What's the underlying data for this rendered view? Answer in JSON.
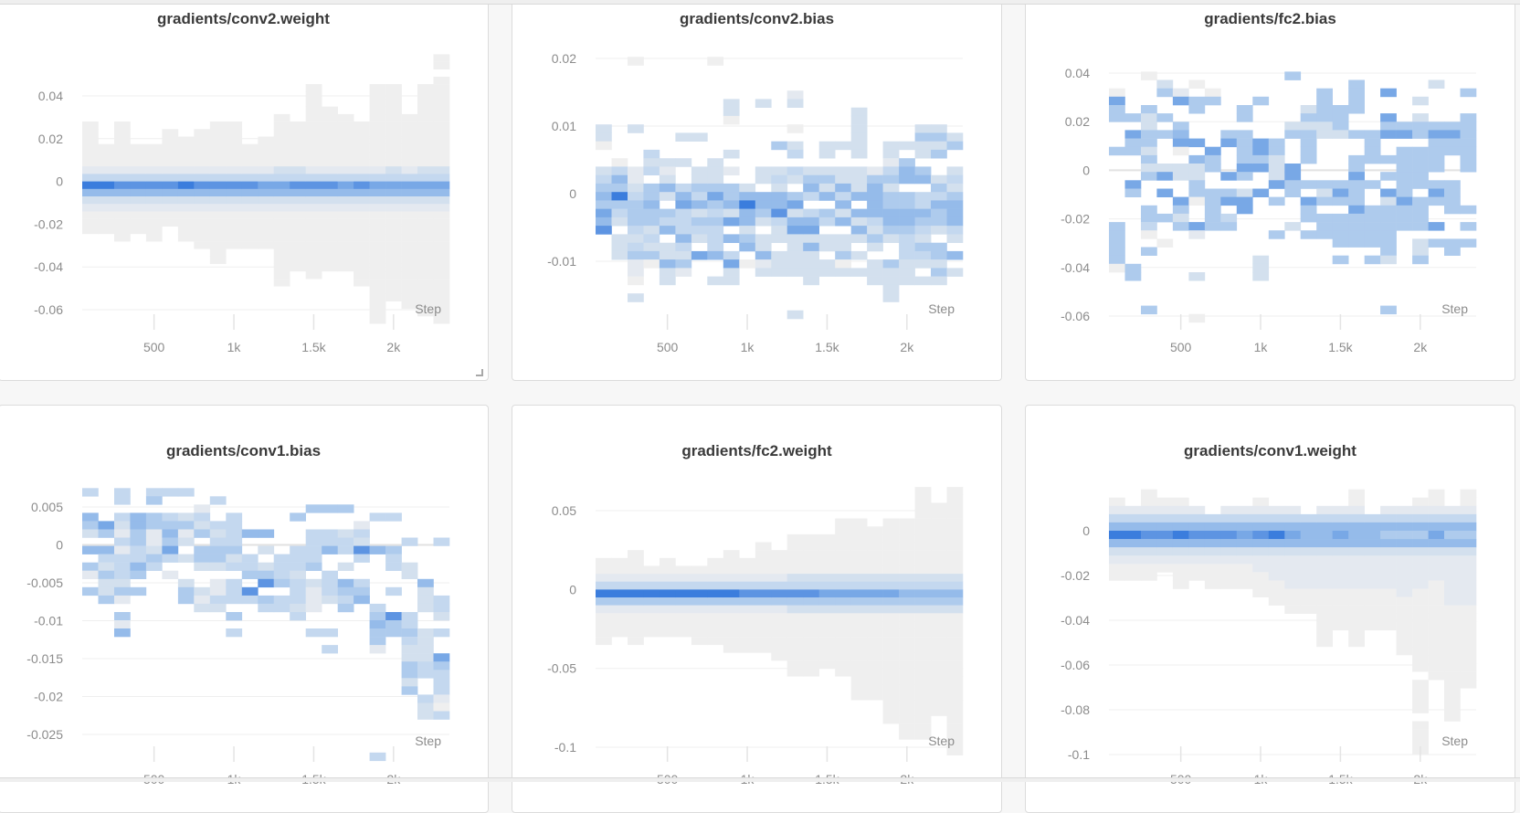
{
  "colorscale": [
    "#ffffff",
    "#efefef",
    "#e4e9f0",
    "#d3e0ee",
    "#c4d8ef",
    "#aecbed",
    "#95bbea",
    "#78a8e6",
    "#5d94e2",
    "#3b7ddd"
  ],
  "chart_data": [
    {
      "type": "heatmap",
      "title": "gradients/conv2.weight",
      "xlabel": "Step",
      "x_ticks": [
        500,
        1000,
        1500,
        2000
      ],
      "x_tick_labels": [
        "500",
        "1k",
        "1.5k",
        "2k"
      ],
      "xlim": [
        50,
        2350
      ],
      "x_bin_start": 50,
      "x_bin_width": 100,
      "y_ticks": [
        0.04,
        0.02,
        0,
        -0.02,
        -0.04,
        -0.06
      ],
      "y_tick_labels": [
        "0.04",
        "0.02",
        "0",
        "-0.02",
        "-0.04",
        "-0.06"
      ],
      "y_bin_top": 0.0595,
      "y_bin_size": 0.0035,
      "columns": [
        "000000000111111249632111000000000000",
        "000000000000111249632111000000000000",
        "000000000111111248632111100000000000",
        "000000000000111248632111000000000000",
        "000000000000111248632111100000000000",
        "000000000011111248632110000000000000",
        "000000000001111249632111100000000000",
        "000000000011111248632111110000000000",
        "000000000111111248632111111100000000",
        "000000000111111248632111110000000000",
        "000000000000111248632111110000000000",
        "000000000001111247632111110000000000",
        "000000001111111347632111111111100000",
        "000000000111111348632111111110000000",
        "000011111111111248632111111111000000",
        "000000011111111248632111111110000000",
        "000000001111111247632111111110000000",
        "000000000111111248632111111111100000",
        "000011111111111247632111111111111111",
        "000011111111111347632111111111111000",
        "000000001111111247632111111111111100",
        "000011111111111347632111111111111110",
        "110111111111111347632111111111111111"
      ]
    },
    {
      "type": "heatmap",
      "title": "gradients/conv2.bias",
      "xlabel": "Step",
      "x_ticks": [
        500,
        1000,
        1500,
        2000
      ],
      "x_tick_labels": [
        "500",
        "1k",
        "1.5k",
        "2k"
      ],
      "xlim": [
        50,
        2350
      ],
      "x_bin_start": 50,
      "x_bin_width": 100,
      "y_ticks": [
        0.02,
        0.01,
        0,
        -0.01
      ],
      "y_tick_labels": [
        "0.02",
        "0.01",
        "0",
        "-0.01"
      ],
      "y_bin_top": 0.0215,
      "y_bin_size": 0.00125,
      "columns": [
        "00000000033100345657680000000000",
        "00000000000001465954303330000000",
        "01000000030000223455543452210300",
        "00000000000043405565534351000000",
        "00000000000003236305460336330000",
        "00000000003003004674446435200000",
        "00000000003000335463543070000000",
        "01000000000003335754544460030000",
        "00000033100030205563706047330000",
        "00000000000000003696635601000000",
        "00000030000000330665303362300000",
        "00000000000500343668433033300000",
        "00000230010340430573673333300003",
        "00000000000000356404673633330000",
        "00000000000330353605403303300000",
        "00000000000300336463603351300000",
        "00000003333330333606363030300000",
        "00000000000000256666435303330000",
        "00000000000332453556653005333300",
        "00000000000305660556654443330000",
        "00000000035330560446543543030000",
        "00000000035350035465530553530000",
        "00000000003500343566643060300000"
      ]
    },
    {
      "type": "heatmap",
      "title": "gradients/fc2.bias",
      "xlabel": "Step",
      "x_ticks": [
        500,
        1000,
        1500,
        2000
      ],
      "x_tick_labels": [
        "500",
        "1k",
        "1.5k",
        "2k"
      ],
      "xlim": [
        50,
        2350
      ],
      "x_bin_start": 50,
      "x_bin_width": 100,
      "y_ticks": [
        0.04,
        0.02,
        0,
        -0.02,
        -0.04,
        -0.06
      ],
      "y_tick_labels": [
        "0.04",
        "0.02",
        "0",
        "-0.02",
        "-0.04",
        "-0.06"
      ],
      "y_bin_top": 0.0475,
      "y_bin_size": 0.00344,
      "columns": [
        "00001755000500000000555551000000",
        "00000005075500075000000005500000",
        "00100053355353500055410500000050",
        "00035005050003707005001000000000",
        "00002700567103300753500000000000",
        "00010550007063355100720000300001",
        "00001500000755005555500000000000",
        "00000000057000705704500000000000",
        "00000055055557503770000000000000",
        "00000500007757007000000033300000",
        "00000000005533370500050000000000",
        "00500000350007755000300000000000",
        "00000035355550050755050000000000",
        "00005555330000053505550000000000",
        "00000055530000057505555050000000",
        "00055550050055755575555000000000",
        "00000000055550050055555050000000",
        "00007007570050507355555530000050",
        "00000000570555555755500000000000",
        "00000303550555550555503350000000",
        "00030000575555057500705000000000",
        "00000000575500055550005500000000",
        "00005005555555000050505000000000"
      ]
    },
    {
      "type": "heatmap",
      "title": "gradients/conv1.bias",
      "xlabel": "Step",
      "x_ticks": [
        500,
        1000,
        1500,
        2000
      ],
      "x_tick_labels": [
        "500",
        "1k",
        "1.5k",
        "2k"
      ],
      "xlim": [
        50,
        2350
      ],
      "x_bin_start": 50,
      "x_bin_width": 100,
      "y_ticks": [
        0.005,
        0,
        -0.005,
        -0.01,
        -0.015,
        -0.02,
        -0.025
      ],
      "y_tick_labels": [
        "0.005",
        "0",
        "-0.005",
        "-0.01",
        "-0.015",
        "-0.02",
        "-0.025"
      ],
      "y_bin_top": 0.0075,
      "y_bin_size": 0.00109,
      "columns": [
        "400653060520500000000000000000000",
        "000075064353350000000000000000000",
        "440432424443520526000000000000000",
        "000665544650500000000000000000000",
        "450552235400000000000000000000000",
        "400456574020000000000000000000000",
        "400352303003550000000000000000000",
        "002435055300323000000000000000000",
        "040043455302243000000000000000000",
        "000444453404440504000000000000000",
        "000006004450840000000000000000000",
        "000006030358054000000000000000000",
        "000000004445044000000000000000000",
        "000500044434443400000000000000000",
        "005004444503222004000000000000000",
        "005004460044430004040000000000000",
        "005003440306545000000000000000000",
        "000024384004560000000000000000000",
        "000400060000004565520000000000004",
        "000400054400400855000000000000000",
        "000000400330000445433553500000000",
        "000000000006333003333440043300000",
        "000000400000044304007544421400000"
      ]
    },
    {
      "type": "heatmap",
      "title": "gradients/fc2.weight",
      "xlabel": "Step",
      "x_ticks": [
        500,
        1000,
        1500,
        2000
      ],
      "x_tick_labels": [
        "500",
        "1k",
        "1.5k",
        "2k"
      ],
      "xlim": [
        50,
        2350
      ],
      "x_bin_start": 50,
      "x_bin_width": 100,
      "y_ticks": [
        0.05,
        0,
        -0.05,
        -0.1
      ],
      "y_tick_labels": [
        "0.05",
        "0",
        "-0.05",
        "-0.1"
      ],
      "y_bin_top": 0.065,
      "y_bin_size": 0.005,
      "columns": [
        "00000000011249521111000000000000000",
        "00000000011249521110000000000000000",
        "00000000111249521111000000000000000",
        "00000000001249521110000000000000000",
        "00000000011249521110000000000000000",
        "00000000001249521110000000000000000",
        "00000000001249521111000000000000000",
        "00000000011249521111000000000000000",
        "00000000111249521111100000000000000",
        "00000000011248521111100000000000000",
        "00000001111248521111100000000000000",
        "00000000111248521111110000000000000",
        "00000011111348531111111100000000000",
        "00000011111348531111111100000000000",
        "00000011111347531111111000000000000",
        "00001111111347531111111100000000000",
        "00001111111347531111111111100000000",
        "00000111111347531111111111100000000",
        "00001111111347531111111111111100000",
        "00001111111346531111111111111111000",
        "11111111111346531111111111111111000",
        "00111111111346531111111111111000000",
        "11111111111346531111111111111111110"
      ]
    },
    {
      "type": "heatmap",
      "title": "gradients/conv1.weight",
      "xlabel": "Step",
      "x_ticks": [
        500,
        1000,
        1500,
        2000
      ],
      "x_tick_labels": [
        "500",
        "1k",
        "1.5k",
        "2k"
      ],
      "xlim": [
        50,
        2350
      ],
      "x_bin_start": 50,
      "x_bin_width": 100,
      "y_ticks": [
        0,
        -0.02,
        -0.04,
        -0.06,
        -0.08,
        -0.1
      ],
      "y_tick_labels": [
        "0",
        "-0.02",
        "-0.04",
        "-0.06",
        "-0.08",
        "-0.1"
      ],
      "y_bin_top": 0.0185,
      "y_bin_size": 0.0037,
      "columns": [
        "01246963211000000000000000000000",
        "00246963211000000000000000000000",
        "11246863211000000000000000000000",
        "01246863210000000000000000000000",
        "01246963211100000000000000000000",
        "00246863211000000000000000000000",
        "00046863211100000000000000000000",
        "00246863211100000000000000000000",
        "00246763211100000000000000000000",
        "01246863221110000000000000000000",
        "00246963222111000000000000000000",
        "00246763222211100000000000000000",
        "00046663222211100000000000000000",
        "00246663222211111110000000000000",
        "00246763222211111000000000000000",
        "11246663222211111110000000000000",
        "00046663222211111000000000000000",
        "00246563222211111000000000000000",
        "00246563222221111111000000000000",
        "01246563222211111111110111101111",
        "11246763222111111111111000000000",
        "00246563222222111111111111110000",
        "11246563222222111111111100000000"
      ]
    }
  ]
}
